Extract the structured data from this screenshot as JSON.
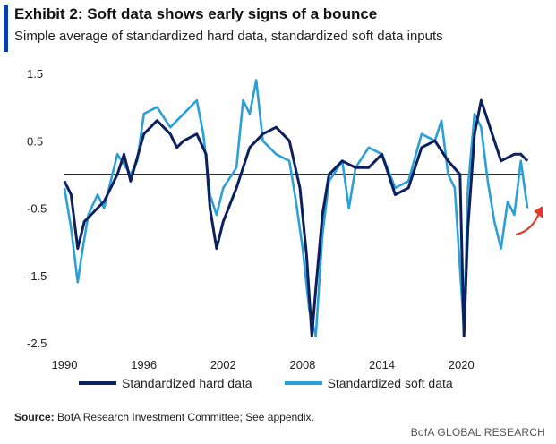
{
  "header": {
    "title": "Exhibit 2: Soft data shows early signs of a bounce",
    "subtitle": "Simple average of standardized hard data, standardized soft data inputs"
  },
  "colors": {
    "accent": "#0a3ea8",
    "hard": "#0c1f5e",
    "soft": "#2a9fd8",
    "arrow": "#e03a2a",
    "zero": "#111111"
  },
  "footer": {
    "source_label": "Source:",
    "source_text": " BofA Research Investment Committee; See appendix.",
    "brand": "BofA GLOBAL RESEARCH"
  },
  "chart_data": {
    "type": "line",
    "ylim": [
      -2.5,
      1.5
    ],
    "xlim": [
      1990,
      2025.6
    ],
    "y_ticks": [
      "1.5",
      "0.5",
      "-0.5",
      "-1.5",
      "-2.5"
    ],
    "y_tick_values": [
      1.5,
      0.5,
      -0.5,
      -1.5,
      -2.5
    ],
    "x_ticks": [
      "1990",
      "1996",
      "2002",
      "2008",
      "2014",
      "2020"
    ],
    "x_tick_values": [
      1990,
      1996,
      2002,
      2008,
      2014,
      2020
    ],
    "zero_line": true,
    "grid": false,
    "legend_position": "bottom",
    "series": [
      {
        "name": "Standardized hard data",
        "color": "#0c1f5e",
        "x": [
          1990,
          1990.5,
          1991,
          1991.5,
          1992,
          1993,
          1994,
          1994.5,
          1995,
          1996,
          1997,
          1998,
          1998.5,
          1999,
          2000,
          2000.7,
          2001,
          2001.5,
          2002,
          2003,
          2004,
          2005,
          2006,
          2007,
          2007.8,
          2008.3,
          2008.7,
          2009,
          2009.5,
          2010,
          2011,
          2012,
          2013,
          2014,
          2015,
          2016,
          2017,
          2018,
          2019,
          2019.9,
          2020.2,
          2020.5,
          2021,
          2021.5,
          2022,
          2022.5,
          2023,
          2024,
          2024.5,
          2025
        ],
        "values": [
          -0.1,
          -0.3,
          -1.1,
          -0.7,
          -0.6,
          -0.4,
          0.0,
          0.3,
          -0.1,
          0.6,
          0.8,
          0.6,
          0.4,
          0.5,
          0.6,
          0.3,
          -0.5,
          -1.1,
          -0.7,
          -0.2,
          0.4,
          0.6,
          0.7,
          0.5,
          -0.2,
          -1.2,
          -2.4,
          -1.7,
          -0.6,
          0.0,
          0.2,
          0.1,
          0.1,
          0.3,
          -0.3,
          -0.2,
          0.4,
          0.5,
          0.2,
          0.0,
          -2.4,
          -0.8,
          0.6,
          1.1,
          0.8,
          0.5,
          0.2,
          0.3,
          0.3,
          0.2
        ]
      },
      {
        "name": "Standardized soft data",
        "color": "#2a9fd8",
        "x": [
          1990,
          1990.5,
          1991,
          1991.3,
          1991.8,
          1992.5,
          1993,
          1994,
          1995,
          1995.5,
          1996,
          1997,
          1998,
          1999,
          2000,
          2000.5,
          2001,
          2001.5,
          2002,
          2003,
          2003.5,
          2004,
          2004.5,
          2005,
          2006,
          2007,
          2007.5,
          2008,
          2008.5,
          2009,
          2009.5,
          2010,
          2011,
          2011.5,
          2012,
          2013,
          2014,
          2015,
          2016,
          2017,
          2018,
          2018.5,
          2019,
          2019.5,
          2020.2,
          2020.5,
          2021,
          2021.5,
          2022,
          2022.5,
          2023,
          2023.5,
          2024,
          2024.5,
          2025
        ],
        "values": [
          -0.2,
          -0.8,
          -1.6,
          -1.2,
          -0.6,
          -0.3,
          -0.5,
          0.3,
          0.0,
          0.2,
          0.9,
          1.0,
          0.7,
          0.9,
          1.1,
          0.6,
          -0.3,
          -0.6,
          -0.2,
          0.1,
          1.1,
          0.9,
          1.4,
          0.5,
          0.3,
          0.2,
          -0.4,
          -1.1,
          -2.0,
          -2.4,
          -0.9,
          -0.1,
          0.2,
          -0.5,
          0.1,
          0.4,
          0.3,
          -0.2,
          -0.1,
          0.6,
          0.5,
          0.8,
          0.0,
          -0.2,
          -2.3,
          -0.2,
          0.9,
          0.7,
          -0.1,
          -0.7,
          -1.1,
          -0.4,
          -0.6,
          0.2,
          -0.5
        ]
      }
    ],
    "annotation": {
      "type": "arrow",
      "color": "#e03a2a",
      "x": 2025.2,
      "y": -0.6
    }
  }
}
